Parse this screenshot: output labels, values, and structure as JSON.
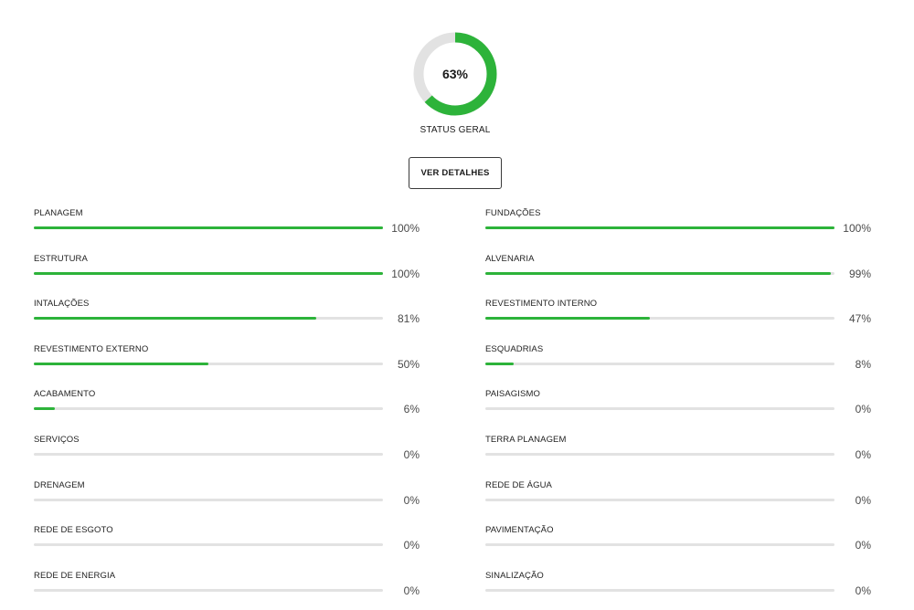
{
  "summary": {
    "percent": 63,
    "value_label": "63%",
    "label": "STATUS GERAL",
    "button_label": "VER DETALHES"
  },
  "colors": {
    "progress": "#2db33a",
    "track": "#e2e2e2"
  },
  "left_items": [
    {
      "label": "PLANAGEM",
      "percent": 100,
      "percent_label": "100%"
    },
    {
      "label": "ESTRUTURA",
      "percent": 100,
      "percent_label": "100%"
    },
    {
      "label": "INTALAÇÕES",
      "percent": 81,
      "percent_label": "81%"
    },
    {
      "label": "REVESTIMENTO EXTERNO",
      "percent": 50,
      "percent_label": "50%"
    },
    {
      "label": "ACABAMENTO",
      "percent": 6,
      "percent_label": "6%"
    },
    {
      "label": "SERVIÇOS",
      "percent": 0,
      "percent_label": "0%"
    },
    {
      "label": "DRENAGEM",
      "percent": 0,
      "percent_label": "0%"
    },
    {
      "label": "REDE DE ESGOTO",
      "percent": 0,
      "percent_label": "0%"
    },
    {
      "label": "REDE DE ENERGIA",
      "percent": 0,
      "percent_label": "0%"
    }
  ],
  "right_items": [
    {
      "label": "FUNDAÇÕES",
      "percent": 100,
      "percent_label": "100%"
    },
    {
      "label": "ALVENARIA",
      "percent": 99,
      "percent_label": "99%"
    },
    {
      "label": "REVESTIMENTO INTERNO",
      "percent": 47,
      "percent_label": "47%"
    },
    {
      "label": "ESQUADRIAS",
      "percent": 8,
      "percent_label": "8%"
    },
    {
      "label": "PAISAGISMO",
      "percent": 0,
      "percent_label": "0%"
    },
    {
      "label": "TERRA PLANAGEM",
      "percent": 0,
      "percent_label": "0%"
    },
    {
      "label": "REDE DE ÁGUA",
      "percent": 0,
      "percent_label": "0%"
    },
    {
      "label": "PAVIMENTAÇÃO",
      "percent": 0,
      "percent_label": "0%"
    },
    {
      "label": "SINALIZAÇÃO",
      "percent": 0,
      "percent_label": "0%"
    }
  ]
}
